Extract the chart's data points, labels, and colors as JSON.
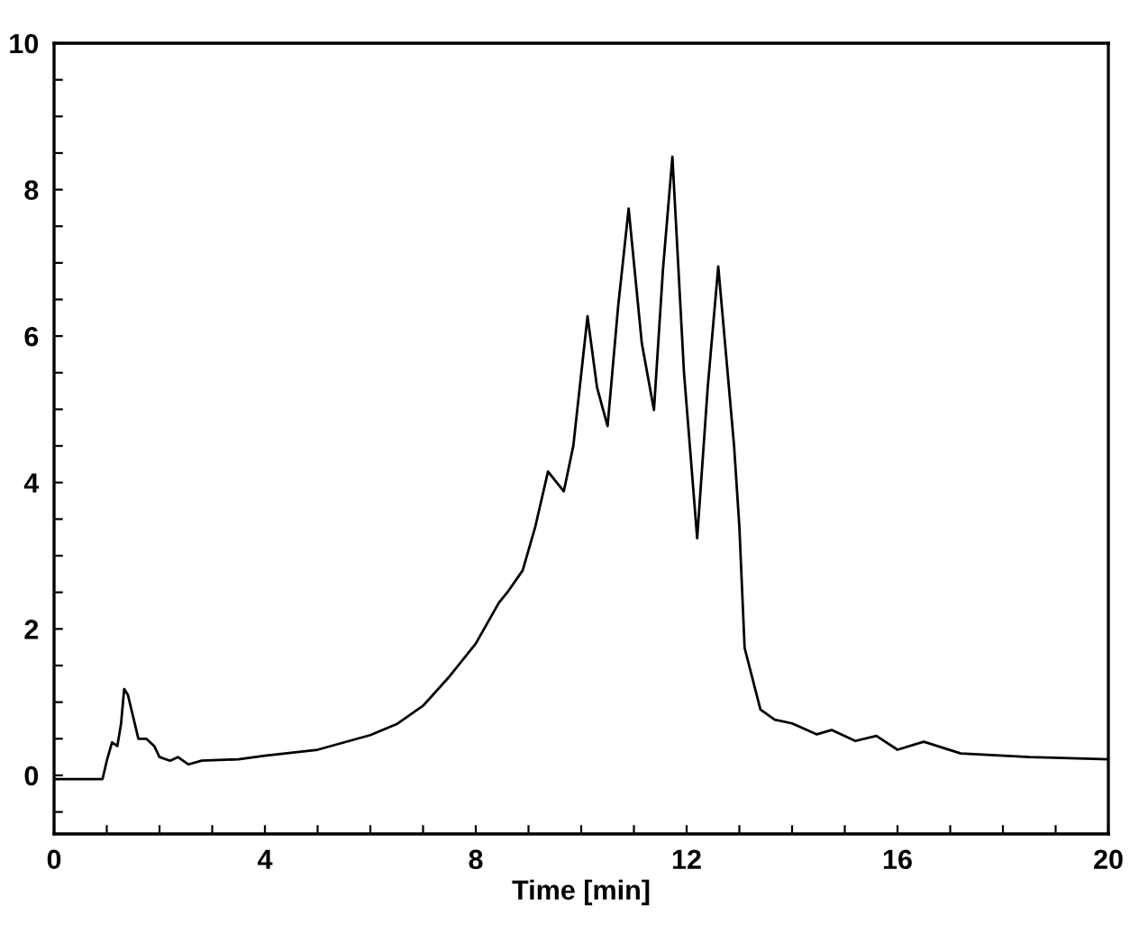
{
  "chart_data": {
    "type": "line",
    "xlabel": "Time [min]",
    "xlim": [
      0,
      20
    ],
    "ylim": [
      -0.8,
      10
    ],
    "xticks": [
      0,
      {
        "value": 1,
        "label": null
      },
      {
        "value": 2,
        "label": null
      },
      {
        "value": 3,
        "label": null
      },
      4,
      {
        "value": 5,
        "label": null
      },
      {
        "value": 6,
        "label": null
      },
      {
        "value": 7,
        "label": null
      },
      8,
      {
        "value": 9,
        "label": null
      },
      {
        "value": 10,
        "label": null
      },
      {
        "value": 11,
        "label": null
      },
      12,
      {
        "value": 13,
        "label": null
      },
      {
        "value": 14,
        "label": null
      },
      {
        "value": 15,
        "label": null
      },
      16,
      {
        "value": 17,
        "label": null
      },
      {
        "value": 18,
        "label": null
      },
      {
        "value": 19,
        "label": null
      },
      20
    ],
    "yticks": [
      {
        "value": -0.5,
        "label": null
      },
      0,
      {
        "value": 0.5,
        "label": null
      },
      {
        "value": 1,
        "label": null
      },
      {
        "value": 1.5,
        "label": null
      },
      2,
      {
        "value": 2.5,
        "label": null
      },
      {
        "value": 3,
        "label": null
      },
      {
        "value": 3.5,
        "label": null
      },
      4,
      {
        "value": 4.5,
        "label": null
      },
      {
        "value": 5,
        "label": null
      },
      {
        "value": 5.5,
        "label": null
      },
      6,
      {
        "value": 6.5,
        "label": null
      },
      {
        "value": 7,
        "label": null
      },
      {
        "value": 7.5,
        "label": null
      },
      8,
      {
        "value": 8.5,
        "label": null
      },
      {
        "value": 9,
        "label": null
      },
      {
        "value": 9.5,
        "label": null
      },
      10
    ],
    "grid": false,
    "legend": false,
    "marker": "none",
    "line_style": "solid",
    "series": [
      {
        "color": "#000000",
        "x": [
          0,
          0.5,
          0.92,
          1.0,
          1.1,
          1.2,
          1.27,
          1.33,
          1.4,
          1.5,
          1.6,
          1.75,
          1.9,
          2.0,
          2.2,
          2.35,
          2.55,
          2.8,
          3.5,
          4,
          5,
          6,
          6.5,
          7,
          7.5,
          8,
          8.44,
          8.6,
          8.89,
          9.13,
          9.37,
          9.67,
          9.85,
          10.12,
          10.3,
          10.5,
          10.7,
          10.9,
          11.15,
          11.38,
          11.55,
          11.73,
          11.95,
          12.2,
          12.4,
          12.6,
          12.9,
          13.0,
          13.1,
          13.4,
          13.67,
          14.0,
          14.47,
          14.75,
          15.2,
          15.6,
          16.0,
          16.5,
          17.2,
          18.5,
          20
        ],
        "values": [
          -0.05,
          -0.05,
          -0.05,
          0.2,
          0.45,
          0.4,
          0.7,
          1.18,
          1.1,
          0.8,
          0.5,
          0.5,
          0.4,
          0.25,
          0.2,
          0.25,
          0.15,
          0.2,
          0.22,
          0.27,
          0.35,
          0.55,
          0.7,
          0.95,
          1.35,
          1.8,
          2.36,
          2.5,
          2.8,
          3.4,
          4.15,
          3.88,
          4.5,
          6.27,
          5.3,
          4.77,
          6.4,
          7.74,
          5.9,
          4.99,
          6.9,
          8.45,
          5.5,
          3.24,
          5.3,
          6.95,
          4.5,
          3.4,
          1.74,
          0.9,
          0.76,
          0.71,
          0.56,
          0.62,
          0.47,
          0.54,
          0.35,
          0.46,
          0.3,
          0.25,
          0.22
        ]
      }
    ]
  }
}
